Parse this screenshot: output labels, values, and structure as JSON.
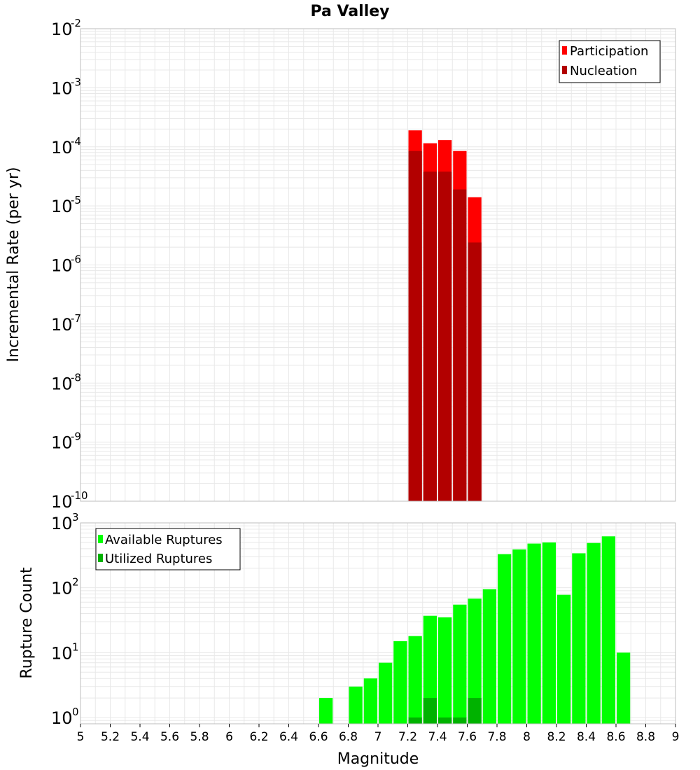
{
  "title": "Pa Valley",
  "colors": {
    "participation": "#ff0000",
    "nucleation": "#b20000",
    "available": "#00ff00",
    "utilized": "#00b200",
    "grid": "#e8e8e8",
    "frame": "#bdbdbd"
  },
  "chart_data": [
    {
      "type": "bar",
      "title": "Pa Valley",
      "xlabel": "Magnitude",
      "ylabel": "Incremental Rate (per yr)",
      "yscale": "log",
      "ylim": [
        1e-10,
        0.01
      ],
      "xlim": [
        5,
        9
      ],
      "bin_width": 0.1,
      "grid": true,
      "legend_position": "top-right",
      "legend": [
        "Participation",
        "Nucleation"
      ],
      "y_tick_exponents": [
        "-2",
        "-3",
        "-4",
        "-5",
        "-6",
        "-7",
        "-8",
        "-9",
        "-10"
      ],
      "series": [
        {
          "name": "Participation",
          "color": "#ff0000",
          "x": [
            7.25,
            7.35,
            7.45,
            7.55,
            7.65
          ],
          "values": [
            0.00019,
            0.000115,
            0.00013,
            8.5e-05,
            1.4e-05
          ]
        },
        {
          "name": "Nucleation",
          "color": "#b20000",
          "x": [
            7.25,
            7.35,
            7.45,
            7.55,
            7.65
          ],
          "values": [
            8.5e-05,
            3.8e-05,
            3.8e-05,
            1.9e-05,
            2.4e-06
          ]
        }
      ]
    },
    {
      "type": "bar",
      "xlabel": "Magnitude",
      "ylabel": "Rupture Count",
      "yscale": "log",
      "ylim": [
        0.8,
        1000
      ],
      "xlim": [
        5,
        9
      ],
      "bin_width": 0.1,
      "grid": true,
      "legend_position": "top-left",
      "legend": [
        "Available Ruptures",
        "Utilized Ruptures"
      ],
      "x_ticks": [
        "5",
        "5.2",
        "5.4",
        "5.6",
        "5.8",
        "6",
        "6.2",
        "6.4",
        "6.6",
        "6.8",
        "7",
        "7.2",
        "7.4",
        "7.6",
        "7.8",
        "8",
        "8.2",
        "8.4",
        "8.6",
        "8.8",
        "9"
      ],
      "y_tick_exponents": [
        "3",
        "2",
        "1",
        "0"
      ],
      "series": [
        {
          "name": "Available Ruptures",
          "color": "#00ff00",
          "x": [
            6.65,
            6.85,
            6.95,
            7.05,
            7.15,
            7.25,
            7.35,
            7.45,
            7.55,
            7.65,
            7.75,
            7.85,
            7.95,
            8.05,
            8.15,
            8.25,
            8.35,
            8.45,
            8.55,
            8.65
          ],
          "values": [
            2,
            3,
            4,
            7,
            15,
            18,
            37,
            35,
            55,
            68,
            95,
            330,
            390,
            480,
            500,
            78,
            340,
            490,
            620,
            10
          ]
        },
        {
          "name": "Utilized Ruptures",
          "color": "#00b200",
          "x": [
            7.25,
            7.35,
            7.45,
            7.55,
            7.65
          ],
          "values": [
            1,
            2,
            1,
            1,
            2
          ]
        }
      ]
    }
  ]
}
